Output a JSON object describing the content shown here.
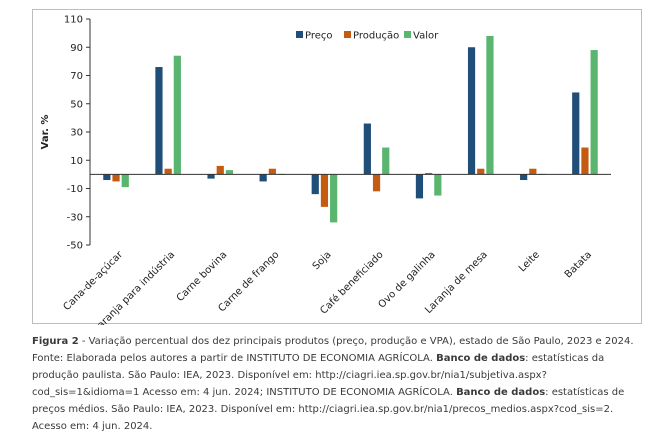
{
  "chart_data": {
    "type": "bar",
    "ylabel": "Var. %",
    "ylim": [
      -50,
      110
    ],
    "yticks": [
      110,
      90,
      70,
      50,
      30,
      10,
      -10,
      -30,
      -50
    ],
    "grid": false,
    "legend_position": "top-center",
    "categories": [
      "Cana-de-açúcar",
      "Laranja para indústria",
      "Carne bovina",
      "Carne de frango",
      "Soja",
      "Café beneficiado",
      "Ovo de galinha",
      "Laranja de mesa",
      "Leite",
      "Batata"
    ],
    "series": [
      {
        "name": "Preço",
        "color": "#1f4e79",
        "values": [
          -4,
          76,
          -3,
          -5,
          -14,
          36,
          -17,
          90,
          -4,
          58
        ]
      },
      {
        "name": "Produção",
        "color": "#c55a11",
        "values": [
          -5,
          4,
          6,
          4,
          -23,
          -12,
          1,
          4,
          4,
          19
        ]
      },
      {
        "name": "Valor",
        "color": "#5ab56e",
        "values": [
          -9,
          84,
          3,
          0,
          -34,
          19,
          -15,
          98,
          0,
          88
        ]
      }
    ]
  },
  "caption": {
    "figure_label": "Figura 2",
    "figure_text": " - Variação percentual dos dez principais produtos (preço, produção e VPA), estado de São Paulo, 2023 e 2024.",
    "source_1": "Fonte: Elaborada pelos autores a partir de ",
    "source_org_1": "INSTITUTO DE ECONOMIA AGRÍCOLA.",
    "source_db_1": "Banco de dados",
    "source_2": ": estatísticas da produção paulista. São Paulo: IEA, 2023. Disponível em: http://ciagri.iea.sp.gov.br/nia1/subjetiva.aspx?cod_sis=1&idioma=1 Acesso em: 4 jun. 2024; INSTITUTO DE ECONOMIA AGRÍCOLA. ",
    "source_db_2": "Banco de dados",
    "source_3": ": estatísticas de preços médios. São Paulo: IEA, 2023. Disponível em: http://ciagri.iea.sp.gov.br/nia1/precos_medios.aspx?cod_sis=2. Acesso em: 4 jun. 2024."
  }
}
